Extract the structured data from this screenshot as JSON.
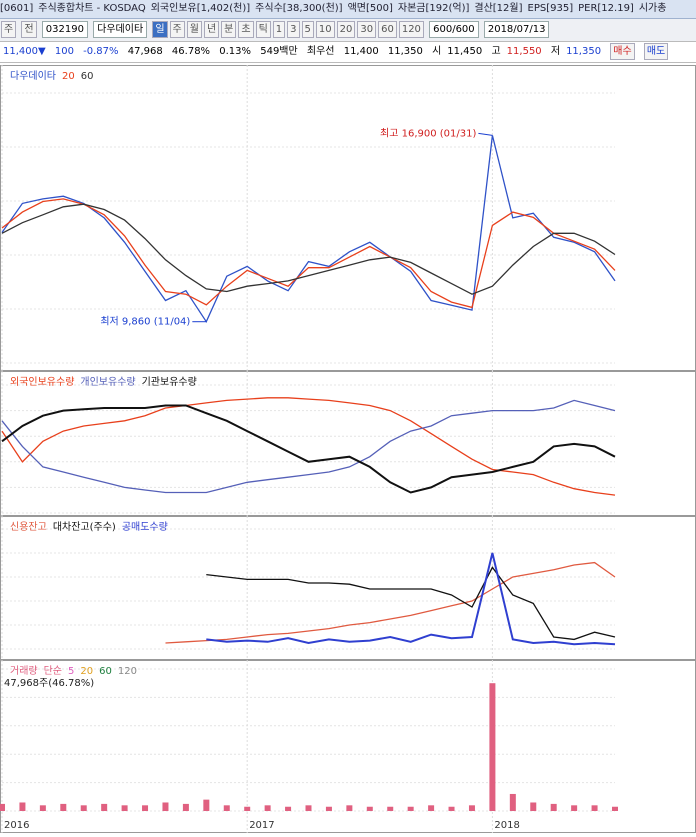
{
  "header": {
    "window_id": "[0601]",
    "title": "주식종합차트 - KOSDAQ",
    "info": [
      "외국인보유[1,402(천)]",
      "주식수[38,300(천)]",
      "액면[500]",
      "자본금[192(억)]",
      "결산[12월]",
      "EPS[935]",
      "PER[12.19]",
      "시가총"
    ]
  },
  "toolbar": {
    "market": "주",
    "scope": "전",
    "code": "032190",
    "name": "다우데이타",
    "periods": [
      "일",
      "주",
      "월",
      "년",
      "분",
      "초",
      "틱"
    ],
    "intervals": [
      "1",
      "3",
      "5",
      "10",
      "20",
      "30",
      "60",
      "120"
    ],
    "count": "600/600",
    "date": "2018/07/13"
  },
  "quote": {
    "price": "11,400▼",
    "change": "100",
    "change_pct": "-0.87%",
    "volume": "47,968",
    "volume_pct": "46.78%",
    "turnover": "0.13%",
    "amount": "549백만",
    "best_label": "최우선",
    "ask": "11,400",
    "bid": "11,350",
    "open_label": "시",
    "open": "11,450",
    "high_label": "고",
    "high": "11,550",
    "low_label": "저",
    "low": "11,350",
    "buy": "매수",
    "sell": "매도"
  },
  "chart_data": [
    {
      "type": "line",
      "categories": [
        "2016",
        null,
        null,
        null,
        null,
        null,
        null,
        null,
        null,
        null,
        null,
        null,
        "2017",
        null,
        null,
        null,
        null,
        null,
        null,
        null,
        null,
        null,
        null,
        null,
        "2018",
        null,
        null,
        null,
        null,
        null,
        null
      ],
      "series": [
        {
          "name": "다우데이타",
          "color": "#2f52c8",
          "values": [
            13230,
            14330,
            14500,
            14600,
            14330,
            13780,
            12860,
            11760,
            10660,
            11030,
            9860,
            11580,
            11950,
            11400,
            11030,
            12130,
            11950,
            12500,
            12860,
            12310,
            11760,
            10660,
            10480,
            10300,
            16900,
            13780,
            13960,
            13050,
            12860,
            12500,
            11400
          ]
        },
        {
          "name": "20",
          "color": "#e8401c",
          "values": [
            13400,
            14000,
            14400,
            14500,
            14300,
            13900,
            13100,
            12000,
            11000,
            10900,
            10500,
            11200,
            11800,
            11500,
            11200,
            11900,
            11900,
            12300,
            12700,
            12300,
            11900,
            11000,
            10600,
            10400,
            13500,
            14000,
            13800,
            13200,
            12900,
            12600,
            11800
          ]
        },
        {
          "name": "60",
          "color": "#333333",
          "values": [
            13200,
            13600,
            13900,
            14200,
            14300,
            14100,
            13700,
            13000,
            12200,
            11600,
            11100,
            11000,
            11200,
            11300,
            11400,
            11600,
            11800,
            12000,
            12200,
            12300,
            12100,
            11700,
            11300,
            10900,
            11200,
            12000,
            12700,
            13200,
            13200,
            12900,
            12400
          ]
        }
      ],
      "ylim": [
        8300,
        18500
      ],
      "annotations": [
        {
          "label": "최고 16,900 (01/31)",
          "value": 16900
        },
        {
          "label": "최저 9,860 (11/04)",
          "value": 9860
        }
      ]
    },
    {
      "type": "line",
      "series": [
        {
          "name": "외국인보유수량",
          "color": "#e8401c",
          "values": [
            64,
            40,
            56,
            64,
            68,
            70,
            72,
            76,
            82,
            84,
            86,
            88,
            89,
            90,
            90,
            89,
            88,
            86,
            84,
            80,
            72,
            62,
            52,
            42,
            34,
            32,
            30,
            24,
            19,
            16,
            14
          ]
        },
        {
          "name": "개인보유수량",
          "color": "#5560b8",
          "values": [
            72,
            52,
            36,
            32,
            28,
            24,
            20,
            18,
            16,
            16,
            16,
            20,
            24,
            26,
            28,
            30,
            32,
            36,
            44,
            56,
            64,
            68,
            76,
            78,
            80,
            80,
            80,
            82,
            88,
            84,
            80
          ]
        },
        {
          "name": "기관보유수량",
          "color": "#111111",
          "values": [
            56,
            68,
            76,
            80,
            81,
            82,
            82,
            82,
            84,
            84,
            78,
            72,
            64,
            56,
            48,
            40,
            42,
            44,
            36,
            24,
            16,
            20,
            28,
            30,
            32,
            36,
            40,
            52,
            54,
            52,
            44
          ]
        }
      ],
      "ylim": [
        0,
        100
      ]
    },
    {
      "type": "line",
      "series": [
        {
          "name": "신용잔고",
          "color": "#e05a40",
          "values": [
            null,
            null,
            null,
            null,
            null,
            null,
            null,
            null,
            5,
            6,
            7,
            8,
            10,
            12,
            13,
            15,
            17,
            20,
            22,
            25,
            28,
            32,
            36,
            40,
            50,
            60,
            63,
            66,
            70,
            72,
            60
          ]
        },
        {
          "name": "대차잔고(주수)",
          "color": "#111111",
          "values": [
            null,
            null,
            null,
            null,
            null,
            null,
            null,
            null,
            null,
            null,
            62,
            60,
            58,
            58,
            58,
            55,
            55,
            54,
            50,
            50,
            50,
            50,
            45,
            35,
            68,
            45,
            38,
            10,
            8,
            14,
            10
          ]
        },
        {
          "name": "공매도수량",
          "color": "#2f3fd0",
          "values": [
            null,
            null,
            null,
            null,
            null,
            null,
            null,
            null,
            null,
            null,
            8,
            6,
            7,
            6,
            9,
            5,
            8,
            6,
            7,
            10,
            6,
            12,
            9,
            10,
            80,
            8,
            5,
            6,
            4,
            5,
            4
          ]
        }
      ],
      "ylim": [
        0,
        100
      ]
    },
    {
      "type": "bar",
      "title": "거래량",
      "note": "47,968주(46.78%)",
      "series": [
        {
          "name": "거래량",
          "color": "#e06080",
          "values": [
            5,
            6,
            4,
            5,
            4,
            5,
            4,
            4,
            6,
            5,
            8,
            4,
            3,
            4,
            3,
            4,
            3,
            4,
            3,
            3,
            3,
            4,
            3,
            4,
            90,
            12,
            6,
            5,
            4,
            4,
            3
          ]
        }
      ],
      "ma_legend": [
        {
          "name": "단순",
          "color": "#e06080"
        },
        {
          "name": "5",
          "color": "#e060c0"
        },
        {
          "name": "20",
          "color": "#e0a020"
        },
        {
          "name": "60",
          "color": "#208040"
        },
        {
          "name": "120",
          "color": "#888888"
        }
      ],
      "ylim": [
        0,
        100
      ]
    }
  ]
}
